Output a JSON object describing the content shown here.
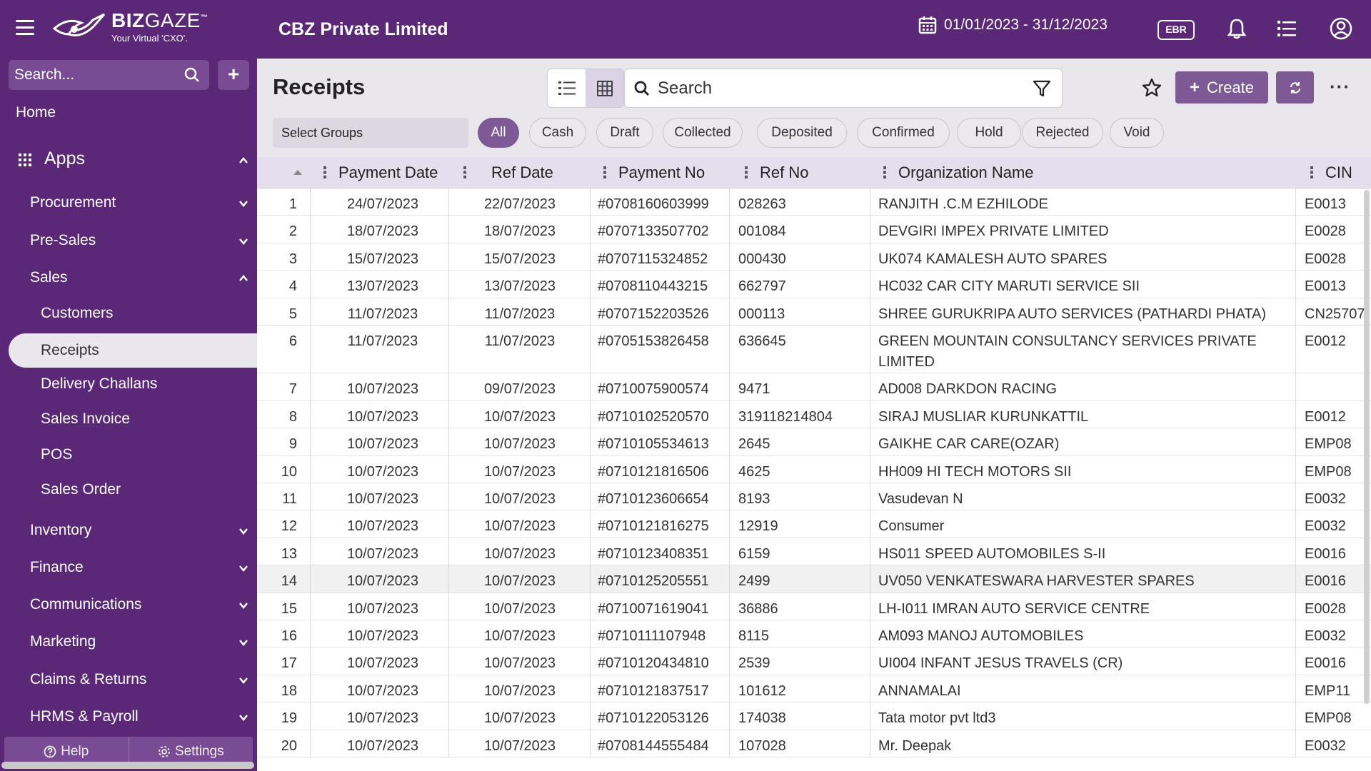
{
  "app": {
    "logo_main_bold": "BIZ",
    "logo_main_light": "GAZE",
    "logo_tm": "™",
    "logo_sub": "Your Virtual 'CXO'.",
    "company": "CBZ Private Limited",
    "date_range": "01/01/2023 - 31/12/2023",
    "ebr_label": "EBR"
  },
  "sidebar": {
    "search_placeholder": "Search...",
    "add_label": "+",
    "home": "Home",
    "apps": "Apps",
    "items": [
      "Procurement",
      "Pre-Sales",
      "Sales",
      "Inventory",
      "Finance",
      "Communications",
      "Marketing",
      "Claims & Returns",
      "HRMS & Payroll"
    ],
    "sales_sub": [
      "Customers",
      "Receipts",
      "Delivery Challans",
      "Sales Invoice",
      "POS",
      "Sales Order"
    ],
    "help": "Help",
    "settings": "Settings"
  },
  "toolbar": {
    "title": "Receipts",
    "search_placeholder": "Search",
    "create_label": "Create",
    "more_label": "···",
    "select_groups": "Select Groups",
    "chips": [
      "All",
      "Cash",
      "Draft",
      "Collected",
      "Deposited",
      "Confirmed",
      "Hold",
      "Rejected",
      "Void"
    ]
  },
  "table": {
    "columns": [
      "Payment Date",
      "Ref Date",
      "Payment No",
      "Ref No",
      "Organization Name",
      "CIN"
    ],
    "rows": [
      [
        "1",
        "24/07/2023",
        "22/07/2023",
        "#0708160603999",
        "028263",
        "RANJITH .C.M EZHILODE",
        "E0013"
      ],
      [
        "2",
        "18/07/2023",
        "18/07/2023",
        "#0707133507702",
        "001084",
        "DEVGIRI IMPEX PRIVATE LIMITED",
        "E0028"
      ],
      [
        "3",
        "15/07/2023",
        "15/07/2023",
        "#0707115324852",
        "000430",
        "UK074 KAMALESH AUTO SPARES",
        "E0028"
      ],
      [
        "4",
        "13/07/2023",
        "13/07/2023",
        "#0708110443215",
        "662797",
        "HC032 CAR CITY MARUTI SERVICE SII",
        "E0013"
      ],
      [
        "5",
        "11/07/2023",
        "11/07/2023",
        "#0707152203526",
        "000113",
        "SHREE GURUKRIPA AUTO SERVICES (PATHARDI PHATA)",
        "CN25707"
      ],
      [
        "6",
        "11/07/2023",
        "11/07/2023",
        "#0705153826458",
        "636645",
        "GREEN MOUNTAIN CONSULTANCY SERVICES PRIVATE LIMITED",
        "E0012"
      ],
      [
        "7",
        "10/07/2023",
        "09/07/2023",
        "#0710075900574",
        "9471",
        "AD008 DARKDON RACING",
        ""
      ],
      [
        "8",
        "10/07/2023",
        "10/07/2023",
        "#0710102520570",
        "319118214804",
        "SIRAJ MUSLIAR KURUNKATTIL",
        "E0012"
      ],
      [
        "9",
        "10/07/2023",
        "10/07/2023",
        "#0710105534613",
        "2645",
        "GAIKHE CAR CARE(OZAR)",
        "EMP08"
      ],
      [
        "10",
        "10/07/2023",
        "10/07/2023",
        "#0710121816506",
        "4625",
        "HH009 HI TECH MOTORS SII",
        "EMP08"
      ],
      [
        "11",
        "10/07/2023",
        "10/07/2023",
        "#0710123606654",
        "8193",
        "Vasudevan N",
        "E0032"
      ],
      [
        "12",
        "10/07/2023",
        "10/07/2023",
        "#0710121816275",
        "12919",
        "Consumer",
        "E0032"
      ],
      [
        "13",
        "10/07/2023",
        "10/07/2023",
        "#0710123408351",
        "6159",
        "HS011 SPEED AUTOMOBILES S-II",
        "E0016"
      ],
      [
        "14",
        "10/07/2023",
        "10/07/2023",
        "#0710125205551",
        "2499",
        "UV050 VENKATESWARA HARVESTER SPARES",
        "E0016"
      ],
      [
        "15",
        "10/07/2023",
        "10/07/2023",
        "#0710071619041",
        "36886",
        "LH-I011 IMRAN AUTO SERVICE CENTRE",
        "E0028"
      ],
      [
        "16",
        "10/07/2023",
        "10/07/2023",
        "#0710111107948",
        "8115",
        "AM093 MANOJ AUTOMOBILES",
        "E0032"
      ],
      [
        "17",
        "10/07/2023",
        "10/07/2023",
        "#0710120434810",
        "2539",
        "UI004 INFANT JESUS TRAVELS (CR)",
        "E0016"
      ],
      [
        "18",
        "10/07/2023",
        "10/07/2023",
        "#0710121837517",
        "101612",
        "ANNAMALAI",
        "EMP11"
      ],
      [
        "19",
        "10/07/2023",
        "10/07/2023",
        "#0710122053126",
        "174038",
        "Tata motor pvt ltd3",
        "EMP08"
      ],
      [
        "20",
        "10/07/2023",
        "10/07/2023",
        "#0708144555484",
        "107028",
        "Mr. Deepak",
        "E0032"
      ]
    ]
  },
  "colors": {
    "brand": "#5b2878",
    "accent": "#7d5a95",
    "header_bg": "#e5deec"
  }
}
